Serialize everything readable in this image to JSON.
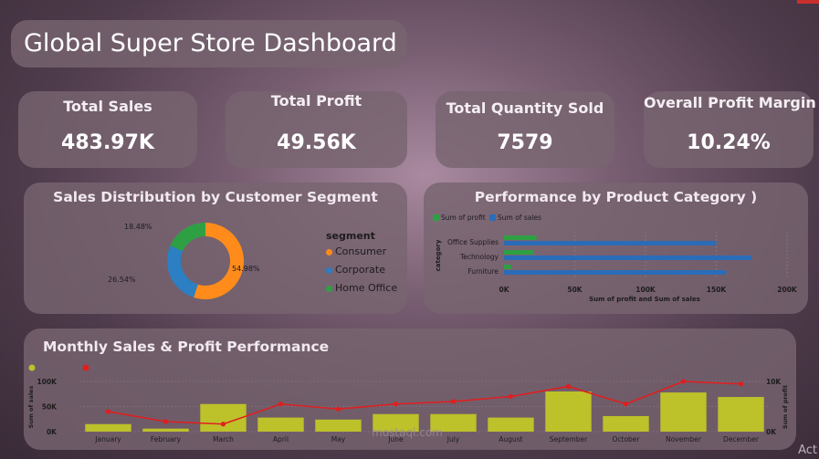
{
  "header": {
    "title": "Global Super Store Dashboard"
  },
  "kpis": [
    {
      "label": "Total Sales",
      "value": "483.97K"
    },
    {
      "label": "Total Profit",
      "value": "49.56K"
    },
    {
      "label": "Total Quantity Sold",
      "value": "7579"
    },
    {
      "label": "Overall Profit Margin",
      "value": "10.24%"
    }
  ],
  "colors": {
    "consumer": "#ff8c1a",
    "corporate": "#2b7fc2",
    "home_office": "#2ea043",
    "profit": "#2ea043",
    "sales": "#2b6cb8",
    "bars": "#bdc12a",
    "line": "#e01e1e"
  },
  "watermark": {
    "text": "mostaql.com"
  },
  "corner_text": "Act",
  "chart_data": [
    {
      "type": "pie",
      "title": "Sales Distribution by Customer Segment",
      "legend_title": "segment",
      "labels": [
        "Consumer",
        "Corporate",
        "Home Office"
      ],
      "values": [
        54.98,
        26.54,
        18.48
      ],
      "value_labels": [
        "54.98%",
        "26.54%",
        "18.48%"
      ],
      "donut": true
    },
    {
      "type": "bar",
      "orientation": "horizontal",
      "title": "Performance by Product Category )",
      "ylabel": "category",
      "xlabel": "Sum of profit and Sum of sales",
      "categories": [
        "Office Supplies",
        "Technology",
        "Furniture"
      ],
      "series": [
        {
          "name": "Sum of profit",
          "values": [
            23000,
            21000,
            5000
          ]
        },
        {
          "name": "Sum of sales",
          "values": [
            150000,
            175000,
            157000
          ]
        }
      ],
      "xlim": [
        0,
        200000
      ],
      "xticks": [
        "0K",
        "50K",
        "100K",
        "150K",
        "200K"
      ]
    },
    {
      "type": "bar",
      "title": "Monthly Sales & Profit Performance",
      "categories": [
        "January",
        "February",
        "March",
        "April",
        "May",
        "June",
        "July",
        "August",
        "September",
        "October",
        "November",
        "December"
      ],
      "series": [
        {
          "type": "bar",
          "axis": "left",
          "values": [
            15000,
            6000,
            55000,
            28000,
            24000,
            35000,
            35000,
            28000,
            80000,
            31000,
            78000,
            69000
          ]
        },
        {
          "type": "line",
          "axis": "right",
          "values": [
            4000,
            2000,
            1500,
            5500,
            4500,
            5500,
            6000,
            7000,
            9000,
            5500,
            10000,
            9500
          ]
        }
      ],
      "ylabel_left": "Sum of sales",
      "ylabel_right": "Sum of profit",
      "ylim_left": [
        0,
        100000
      ],
      "yticks_left": [
        "0K",
        "50K",
        "100K"
      ],
      "ylim_right": [
        0,
        10000
      ],
      "yticks_right": [
        "0K",
        "10K"
      ]
    }
  ]
}
